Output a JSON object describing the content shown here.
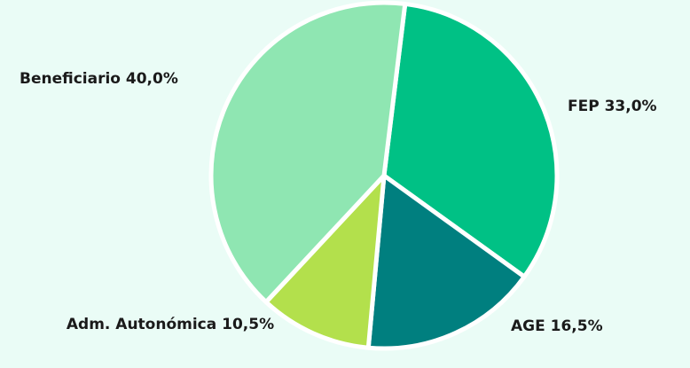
{
  "chart_data": {
    "type": "pie",
    "title": "",
    "slices": [
      {
        "name": "FEP",
        "value": 33.0,
        "label": "FEP 33,0%",
        "color": "#00c185"
      },
      {
        "name": "AGE",
        "value": 16.5,
        "label": "AGE 16,5%",
        "color": "#007f7f"
      },
      {
        "name": "Adm. Autonómica",
        "value": 10.5,
        "label": "Adm. Autonómica 10,5%",
        "color": "#b3e04c"
      },
      {
        "name": "Beneficiario",
        "value": 40.0,
        "label": "Beneficiario 40,0%",
        "color": "#8fe6b2"
      }
    ]
  },
  "labels": {
    "fep": "FEP 33,0%",
    "age": "AGE 16,5%",
    "adm": "Adm. Autonómica 10,5%",
    "beneficiario": "Beneficiario 40,0%"
  },
  "colors": {
    "background": "#eafcf6",
    "separator": "#ffffff"
  }
}
